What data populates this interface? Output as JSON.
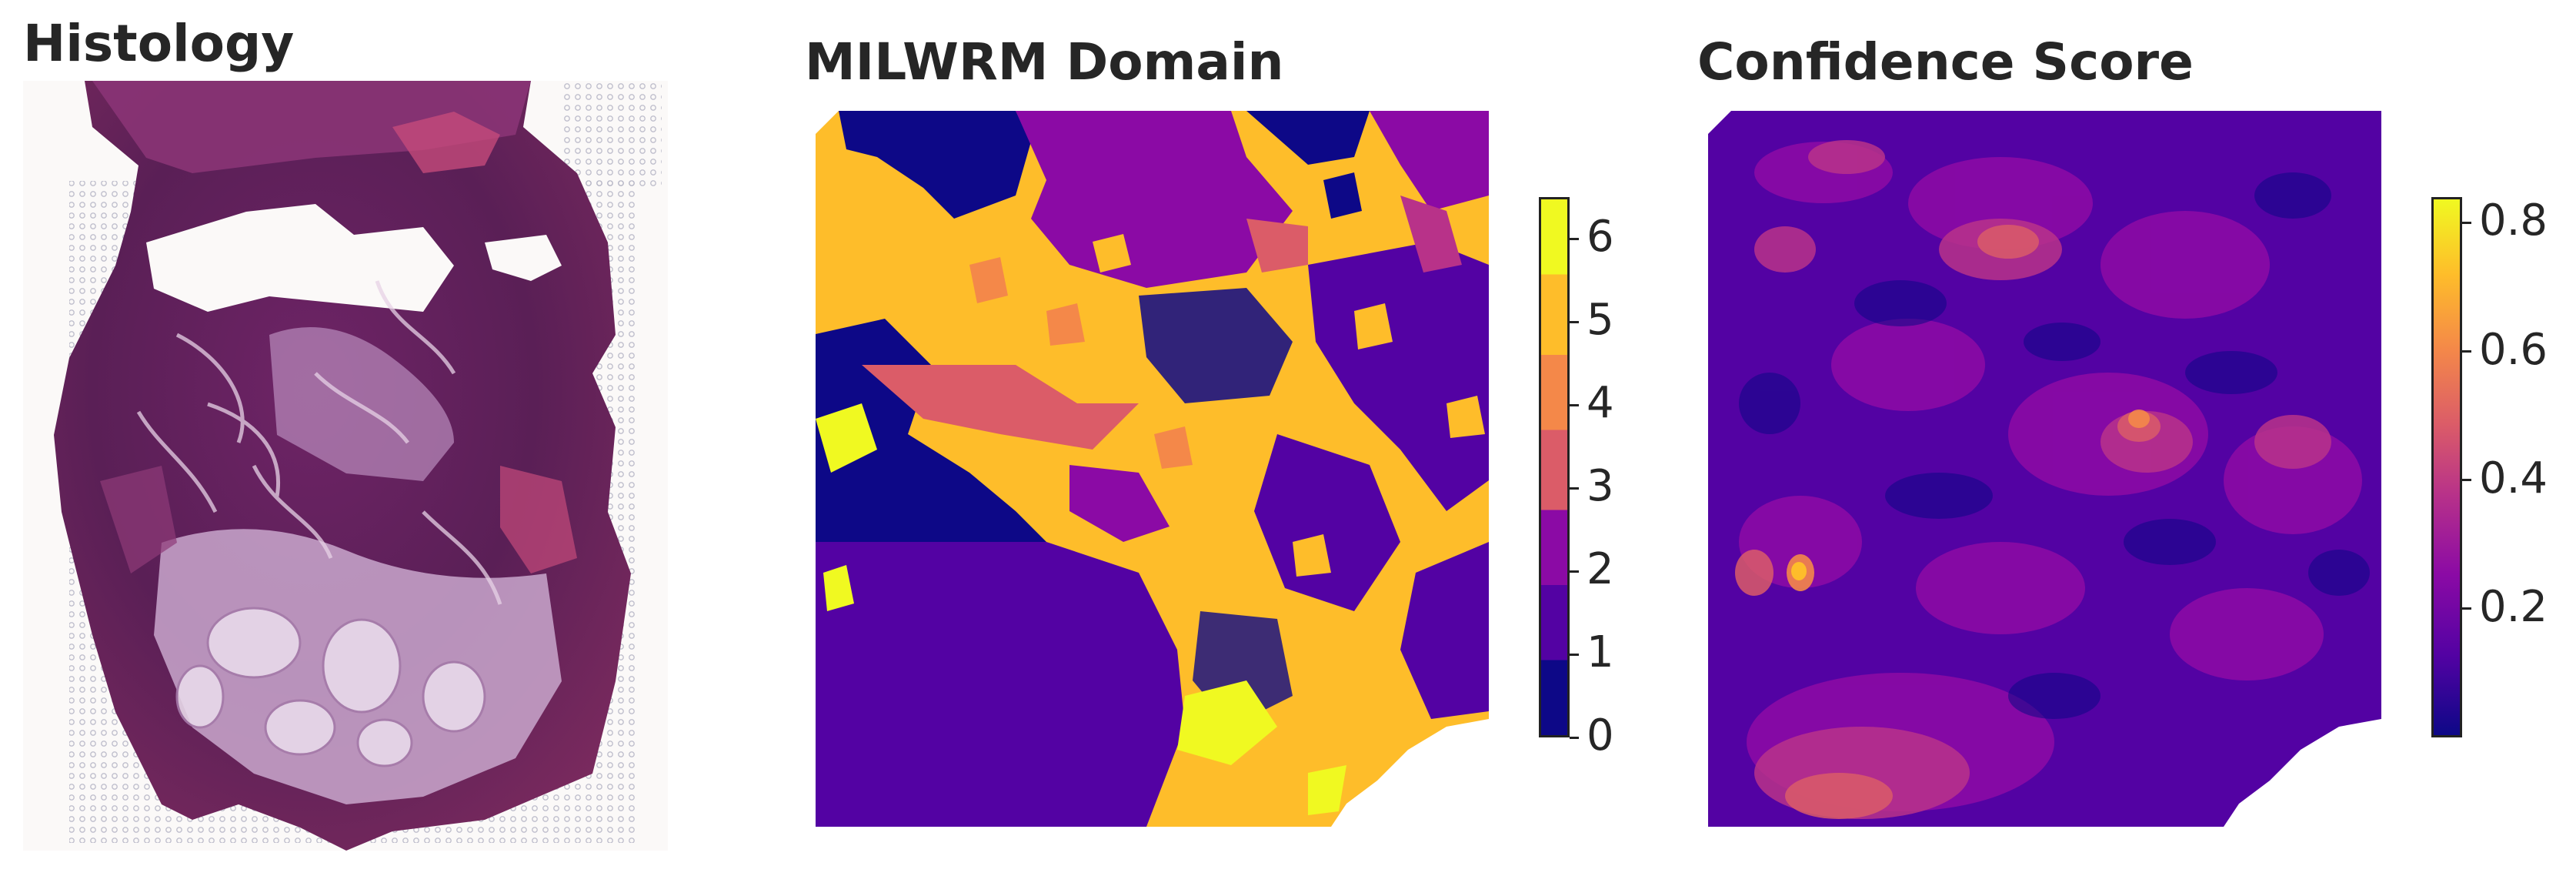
{
  "panels": {
    "histology": {
      "title": "Histology"
    },
    "domain": {
      "title": "MILWRM Domain",
      "colorbar": {
        "ticks": [
          "0",
          "1",
          "2",
          "3",
          "4",
          "5",
          "6"
        ],
        "colormap": "plasma",
        "range": [
          0,
          6.5
        ]
      }
    },
    "confidence": {
      "title": "Confidence Score",
      "colorbar": {
        "ticks": [
          "0.2",
          "0.4",
          "0.6",
          "0.8"
        ],
        "colormap": "plasma",
        "range": [
          0,
          0.84
        ]
      }
    }
  },
  "colors": {
    "plasma": [
      "#0d0887",
      "#5302a3",
      "#8b0aa5",
      "#b83289",
      "#db5c68",
      "#f48849",
      "#febd2a",
      "#f0f921"
    ],
    "tissue_dark": "#5e1c54",
    "tissue_mid": "#8a2d6a",
    "tissue_light": "#c9a7cc",
    "tissue_pink": "#c44a7a"
  }
}
